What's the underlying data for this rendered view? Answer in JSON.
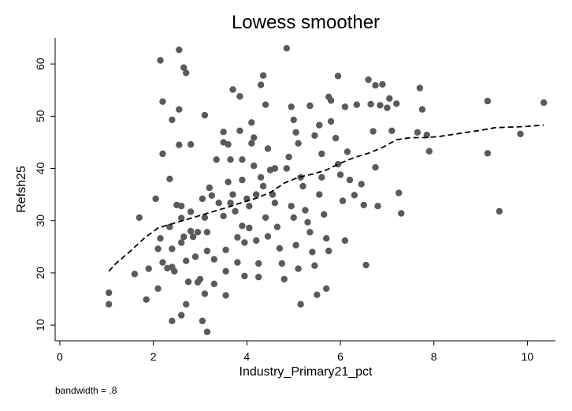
{
  "chart_data": {
    "type": "scatter",
    "title": "Lowess smoother",
    "xlabel": "Industry_Primary21_pct",
    "ylabel": "Refsh25",
    "xlim": [
      -0.1,
      10.6
    ],
    "ylim": [
      7,
      65
    ],
    "xticks": [
      0,
      2,
      4,
      6,
      8,
      10
    ],
    "yticks": [
      10,
      20,
      30,
      40,
      50,
      60
    ],
    "grid": false,
    "note": "bandwidth = .8",
    "points": [
      [
        1.05,
        16.2
      ],
      [
        1.05,
        14.0
      ],
      [
        1.7,
        30.6
      ],
      [
        1.6,
        19.8
      ],
      [
        1.85,
        14.9
      ],
      [
        1.9,
        20.8
      ],
      [
        2.05,
        34.2
      ],
      [
        2.1,
        24.6
      ],
      [
        2.15,
        26.6
      ],
      [
        2.1,
        17.0
      ],
      [
        2.15,
        60.7
      ],
      [
        2.2,
        52.8
      ],
      [
        2.2,
        42.8
      ],
      [
        2.2,
        22.0
      ],
      [
        2.3,
        20.9
      ],
      [
        2.35,
        38.0
      ],
      [
        2.4,
        49.3
      ],
      [
        2.35,
        28.8
      ],
      [
        2.4,
        24.6
      ],
      [
        2.4,
        21.1
      ],
      [
        2.45,
        20.3
      ],
      [
        2.5,
        33.0
      ],
      [
        2.4,
        10.8
      ],
      [
        2.55,
        62.7
      ],
      [
        2.55,
        51.3
      ],
      [
        2.55,
        44.5
      ],
      [
        2.6,
        32.8
      ],
      [
        2.6,
        30.5
      ],
      [
        2.65,
        59.3
      ],
      [
        2.7,
        58.3
      ],
      [
        2.65,
        26.9
      ],
      [
        2.6,
        25.8
      ],
      [
        2.7,
        22.3
      ],
      [
        2.7,
        14.0
      ],
      [
        2.6,
        11.9
      ],
      [
        2.75,
        18.3
      ],
      [
        2.8,
        44.6
      ],
      [
        2.8,
        31.7
      ],
      [
        2.8,
        28.0
      ],
      [
        2.85,
        26.9
      ],
      [
        2.9,
        23.1
      ],
      [
        2.95,
        27.8
      ],
      [
        2.95,
        18.2
      ],
      [
        3.0,
        18.8
      ],
      [
        3.1,
        50.2
      ],
      [
        3.05,
        34.2
      ],
      [
        3.1,
        30.6
      ],
      [
        3.15,
        27.8
      ],
      [
        3.15,
        24.2
      ],
      [
        3.1,
        16.0
      ],
      [
        3.05,
        10.8
      ],
      [
        3.15,
        8.7
      ],
      [
        3.2,
        36.3
      ],
      [
        3.25,
        34.8
      ],
      [
        3.3,
        22.6
      ],
      [
        3.3,
        17.9
      ],
      [
        3.35,
        41.7
      ],
      [
        3.4,
        33.4
      ],
      [
        3.5,
        47.0
      ],
      [
        3.5,
        45.0
      ],
      [
        3.5,
        30.9
      ],
      [
        3.55,
        24.4
      ],
      [
        3.55,
        20.3
      ],
      [
        3.55,
        15.7
      ],
      [
        3.6,
        44.6
      ],
      [
        3.6,
        37.4
      ],
      [
        3.65,
        41.7
      ],
      [
        3.65,
        33.4
      ],
      [
        3.7,
        55.1
      ],
      [
        3.7,
        35.0
      ],
      [
        3.75,
        31.8
      ],
      [
        3.8,
        26.8
      ],
      [
        3.8,
        22.0
      ],
      [
        3.85,
        53.8
      ],
      [
        3.85,
        47.2
      ],
      [
        3.9,
        41.7
      ],
      [
        3.9,
        37.8
      ],
      [
        3.9,
        29.0
      ],
      [
        3.95,
        25.8
      ],
      [
        3.95,
        19.4
      ],
      [
        4.0,
        34.2
      ],
      [
        4.05,
        32.8
      ],
      [
        4.05,
        28.6
      ],
      [
        4.1,
        48.8
      ],
      [
        4.1,
        44.8
      ],
      [
        4.15,
        45.9
      ],
      [
        4.15,
        40.5
      ],
      [
        4.2,
        35.0
      ],
      [
        4.2,
        26.2
      ],
      [
        4.25,
        21.8
      ],
      [
        4.25,
        19.2
      ],
      [
        4.3,
        38.3
      ],
      [
        4.35,
        36.6
      ],
      [
        4.4,
        30.6
      ],
      [
        4.45,
        27.0
      ],
      [
        4.3,
        56.0
      ],
      [
        4.35,
        57.8
      ],
      [
        4.4,
        52.2
      ],
      [
        4.45,
        43.8
      ],
      [
        4.5,
        39.7
      ],
      [
        4.55,
        35.0
      ],
      [
        4.6,
        40.0
      ],
      [
        4.6,
        33.4
      ],
      [
        4.65,
        28.8
      ],
      [
        4.7,
        24.7
      ],
      [
        4.75,
        21.8
      ],
      [
        4.8,
        18.8
      ],
      [
        4.85,
        40.0
      ],
      [
        4.9,
        42.2
      ],
      [
        4.95,
        32.8
      ],
      [
        5.0,
        30.6
      ],
      [
        5.05,
        25.3
      ],
      [
        5.1,
        20.8
      ],
      [
        5.15,
        14.0
      ],
      [
        4.85,
        63.0
      ],
      [
        4.95,
        51.8
      ],
      [
        5.0,
        49.3
      ],
      [
        5.05,
        46.9
      ],
      [
        5.1,
        44.8
      ],
      [
        5.15,
        38.3
      ],
      [
        5.2,
        36.6
      ],
      [
        5.25,
        32.0
      ],
      [
        5.3,
        29.7
      ],
      [
        5.35,
        27.8
      ],
      [
        5.4,
        24.0
      ],
      [
        5.45,
        21.4
      ],
      [
        5.5,
        15.8
      ],
      [
        5.35,
        52.0
      ],
      [
        5.45,
        46.3
      ],
      [
        5.55,
        48.3
      ],
      [
        5.6,
        42.8
      ],
      [
        5.6,
        38.3
      ],
      [
        5.55,
        35.0
      ],
      [
        5.65,
        31.2
      ],
      [
        5.7,
        26.6
      ],
      [
        5.75,
        24.2
      ],
      [
        5.7,
        17.0
      ],
      [
        5.75,
        53.7
      ],
      [
        5.8,
        53.0
      ],
      [
        5.8,
        49.0
      ],
      [
        5.9,
        45.8
      ],
      [
        5.95,
        40.8
      ],
      [
        6.0,
        38.8
      ],
      [
        6.05,
        33.8
      ],
      [
        6.1,
        26.2
      ],
      [
        5.95,
        57.7
      ],
      [
        6.1,
        51.8
      ],
      [
        6.15,
        43.2
      ],
      [
        6.2,
        37.8
      ],
      [
        6.3,
        34.9
      ],
      [
        6.35,
        52.2
      ],
      [
        6.45,
        37.0
      ],
      [
        6.5,
        33.0
      ],
      [
        6.55,
        21.5
      ],
      [
        6.6,
        57.0
      ],
      [
        6.65,
        52.3
      ],
      [
        6.7,
        47.1
      ],
      [
        6.75,
        40.2
      ],
      [
        6.8,
        32.8
      ],
      [
        6.75,
        55.9
      ],
      [
        6.85,
        52.1
      ],
      [
        6.9,
        56.1
      ],
      [
        7.0,
        51.6
      ],
      [
        7.05,
        53.4
      ],
      [
        7.1,
        47.2
      ],
      [
        7.2,
        52.4
      ],
      [
        7.25,
        35.3
      ],
      [
        7.3,
        31.4
      ],
      [
        7.65,
        46.9
      ],
      [
        7.7,
        55.4
      ],
      [
        7.75,
        51.3
      ],
      [
        7.85,
        46.4
      ],
      [
        7.9,
        43.3
      ],
      [
        9.15,
        52.9
      ],
      [
        9.15,
        42.9
      ],
      [
        9.4,
        31.8
      ],
      [
        9.85,
        46.6
      ],
      [
        10.35,
        52.6
      ]
    ],
    "smoother": [
      [
        1.05,
        20.3
      ],
      [
        1.2,
        21.8
      ],
      [
        1.5,
        24.1
      ],
      [
        1.8,
        26.6
      ],
      [
        2.1,
        28.6
      ],
      [
        2.4,
        29.4
      ],
      [
        2.7,
        30.2
      ],
      [
        3.0,
        31.0
      ],
      [
        3.3,
        31.8
      ],
      [
        3.6,
        32.6
      ],
      [
        3.9,
        33.5
      ],
      [
        4.2,
        34.3
      ],
      [
        4.5,
        35.4
      ],
      [
        4.8,
        37.2
      ],
      [
        5.1,
        38.3
      ],
      [
        5.4,
        38.9
      ],
      [
        5.7,
        39.7
      ],
      [
        6.0,
        41.0
      ],
      [
        6.3,
        42.1
      ],
      [
        6.6,
        42.9
      ],
      [
        6.9,
        44.0
      ],
      [
        7.2,
        45.5
      ],
      [
        7.5,
        45.9
      ],
      [
        7.8,
        45.9
      ],
      [
        8.1,
        46.1
      ],
      [
        8.4,
        46.5
      ],
      [
        8.7,
        46.9
      ],
      [
        9.0,
        47.3
      ],
      [
        9.3,
        47.8
      ],
      [
        9.6,
        47.9
      ],
      [
        9.9,
        48.0
      ],
      [
        10.2,
        48.2
      ],
      [
        10.35,
        48.3
      ]
    ]
  }
}
